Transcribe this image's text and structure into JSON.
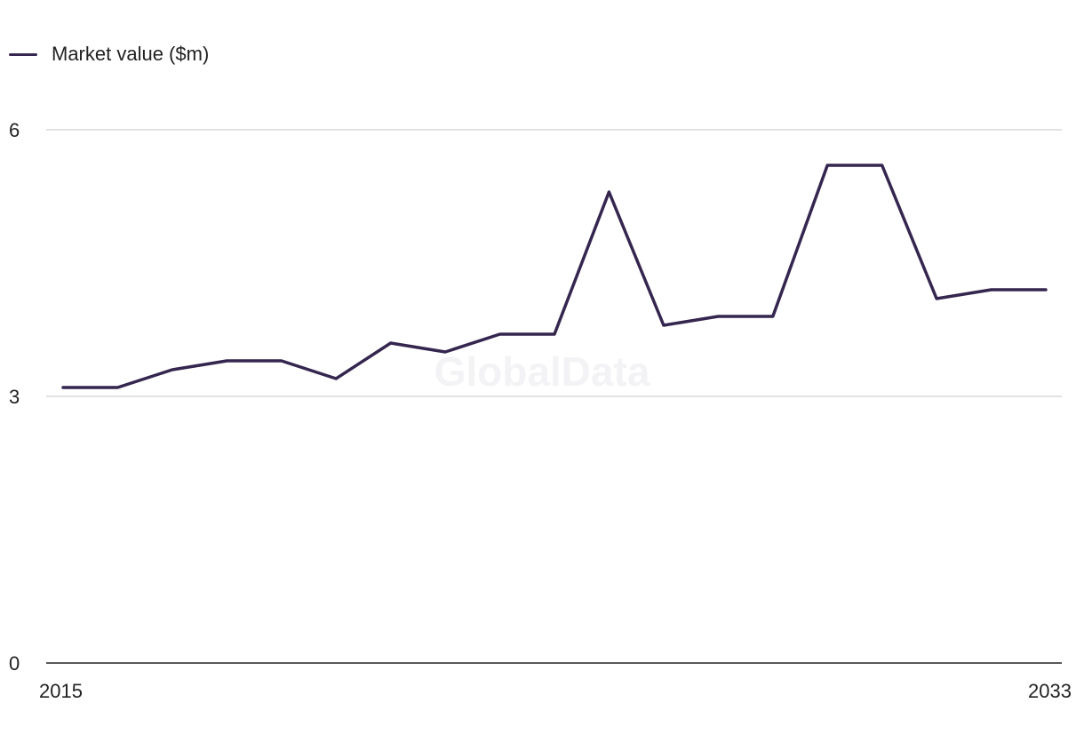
{
  "legend": {
    "label": "Market value ($m)"
  },
  "watermark": "GlobalData",
  "colors": {
    "line": "#35264f",
    "grid": "#d9d9d9",
    "axis": "#222222"
  },
  "chart_data": {
    "type": "line",
    "x": [
      2015,
      2016,
      2017,
      2018,
      2019,
      2020,
      2021,
      2022,
      2023,
      2024,
      2025,
      2026,
      2027,
      2028,
      2029,
      2030,
      2031,
      2032,
      2033
    ],
    "series": [
      {
        "name": "Market value ($m)",
        "values": [
          3.1,
          3.1,
          3.3,
          3.4,
          3.4,
          3.2,
          3.6,
          3.5,
          3.7,
          3.7,
          5.3,
          3.8,
          3.9,
          3.9,
          5.6,
          5.6,
          4.1,
          4.2,
          4.2
        ]
      }
    ],
    "x_tick_labels": [
      "2015",
      "2033"
    ],
    "y_ticks": [
      0,
      3,
      6
    ],
    "ylim": [
      0,
      6
    ],
    "title": "",
    "xlabel": "",
    "ylabel": "",
    "grid": true,
    "legend_position": "top-left"
  }
}
